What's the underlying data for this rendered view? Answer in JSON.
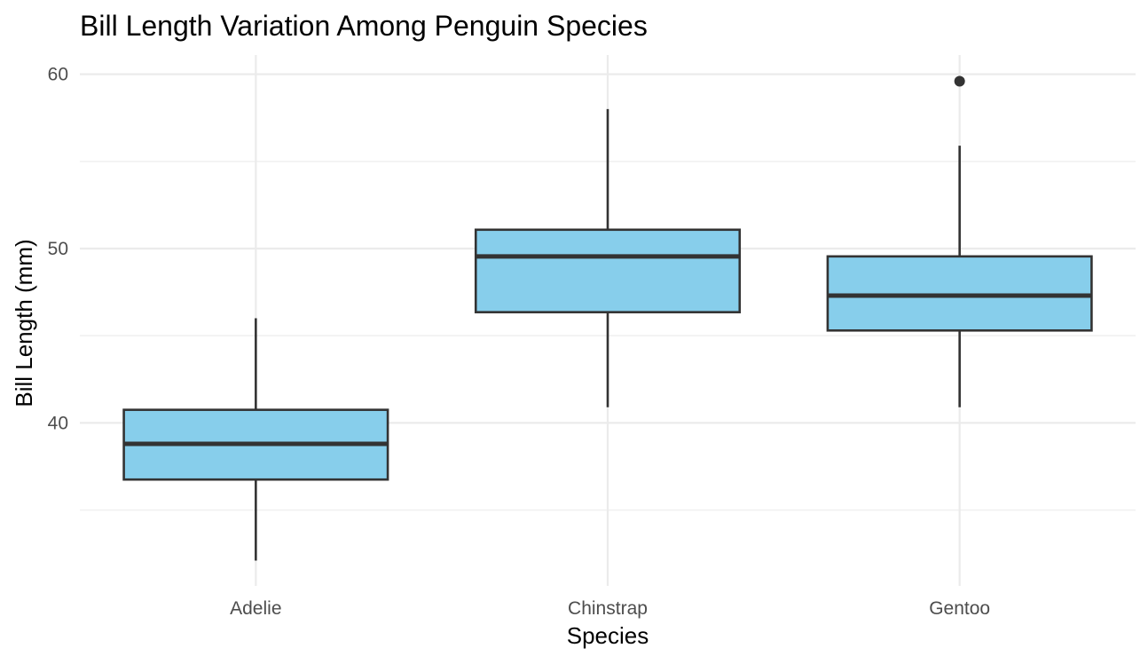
{
  "chart_data": {
    "type": "boxplot",
    "title": "Bill Length Variation Among Penguin Species",
    "xlabel": "Species",
    "ylabel": "Bill Length (mm)",
    "categories": [
      "Adelie",
      "Chinstrap",
      "Gentoo"
    ],
    "y_ticks": [
      40,
      50,
      60
    ],
    "y_tick_labels": [
      "40",
      "50",
      "60"
    ],
    "ylim": [
      30.65,
      61.1
    ],
    "grid": true,
    "box_fill": "#87CEEB",
    "box_stroke": "#333333",
    "boxes": [
      {
        "category": "Adelie",
        "min": 32.1,
        "q1": 36.75,
        "median": 38.8,
        "q3": 40.75,
        "max": 46.0,
        "outliers": []
      },
      {
        "category": "Chinstrap",
        "min": 40.9,
        "q1": 46.35,
        "median": 49.55,
        "q3": 51.08,
        "max": 58.0,
        "outliers": []
      },
      {
        "category": "Gentoo",
        "min": 40.9,
        "q1": 45.3,
        "median": 47.3,
        "q3": 49.55,
        "max": 55.9,
        "outliers": [
          59.6
        ]
      }
    ]
  }
}
